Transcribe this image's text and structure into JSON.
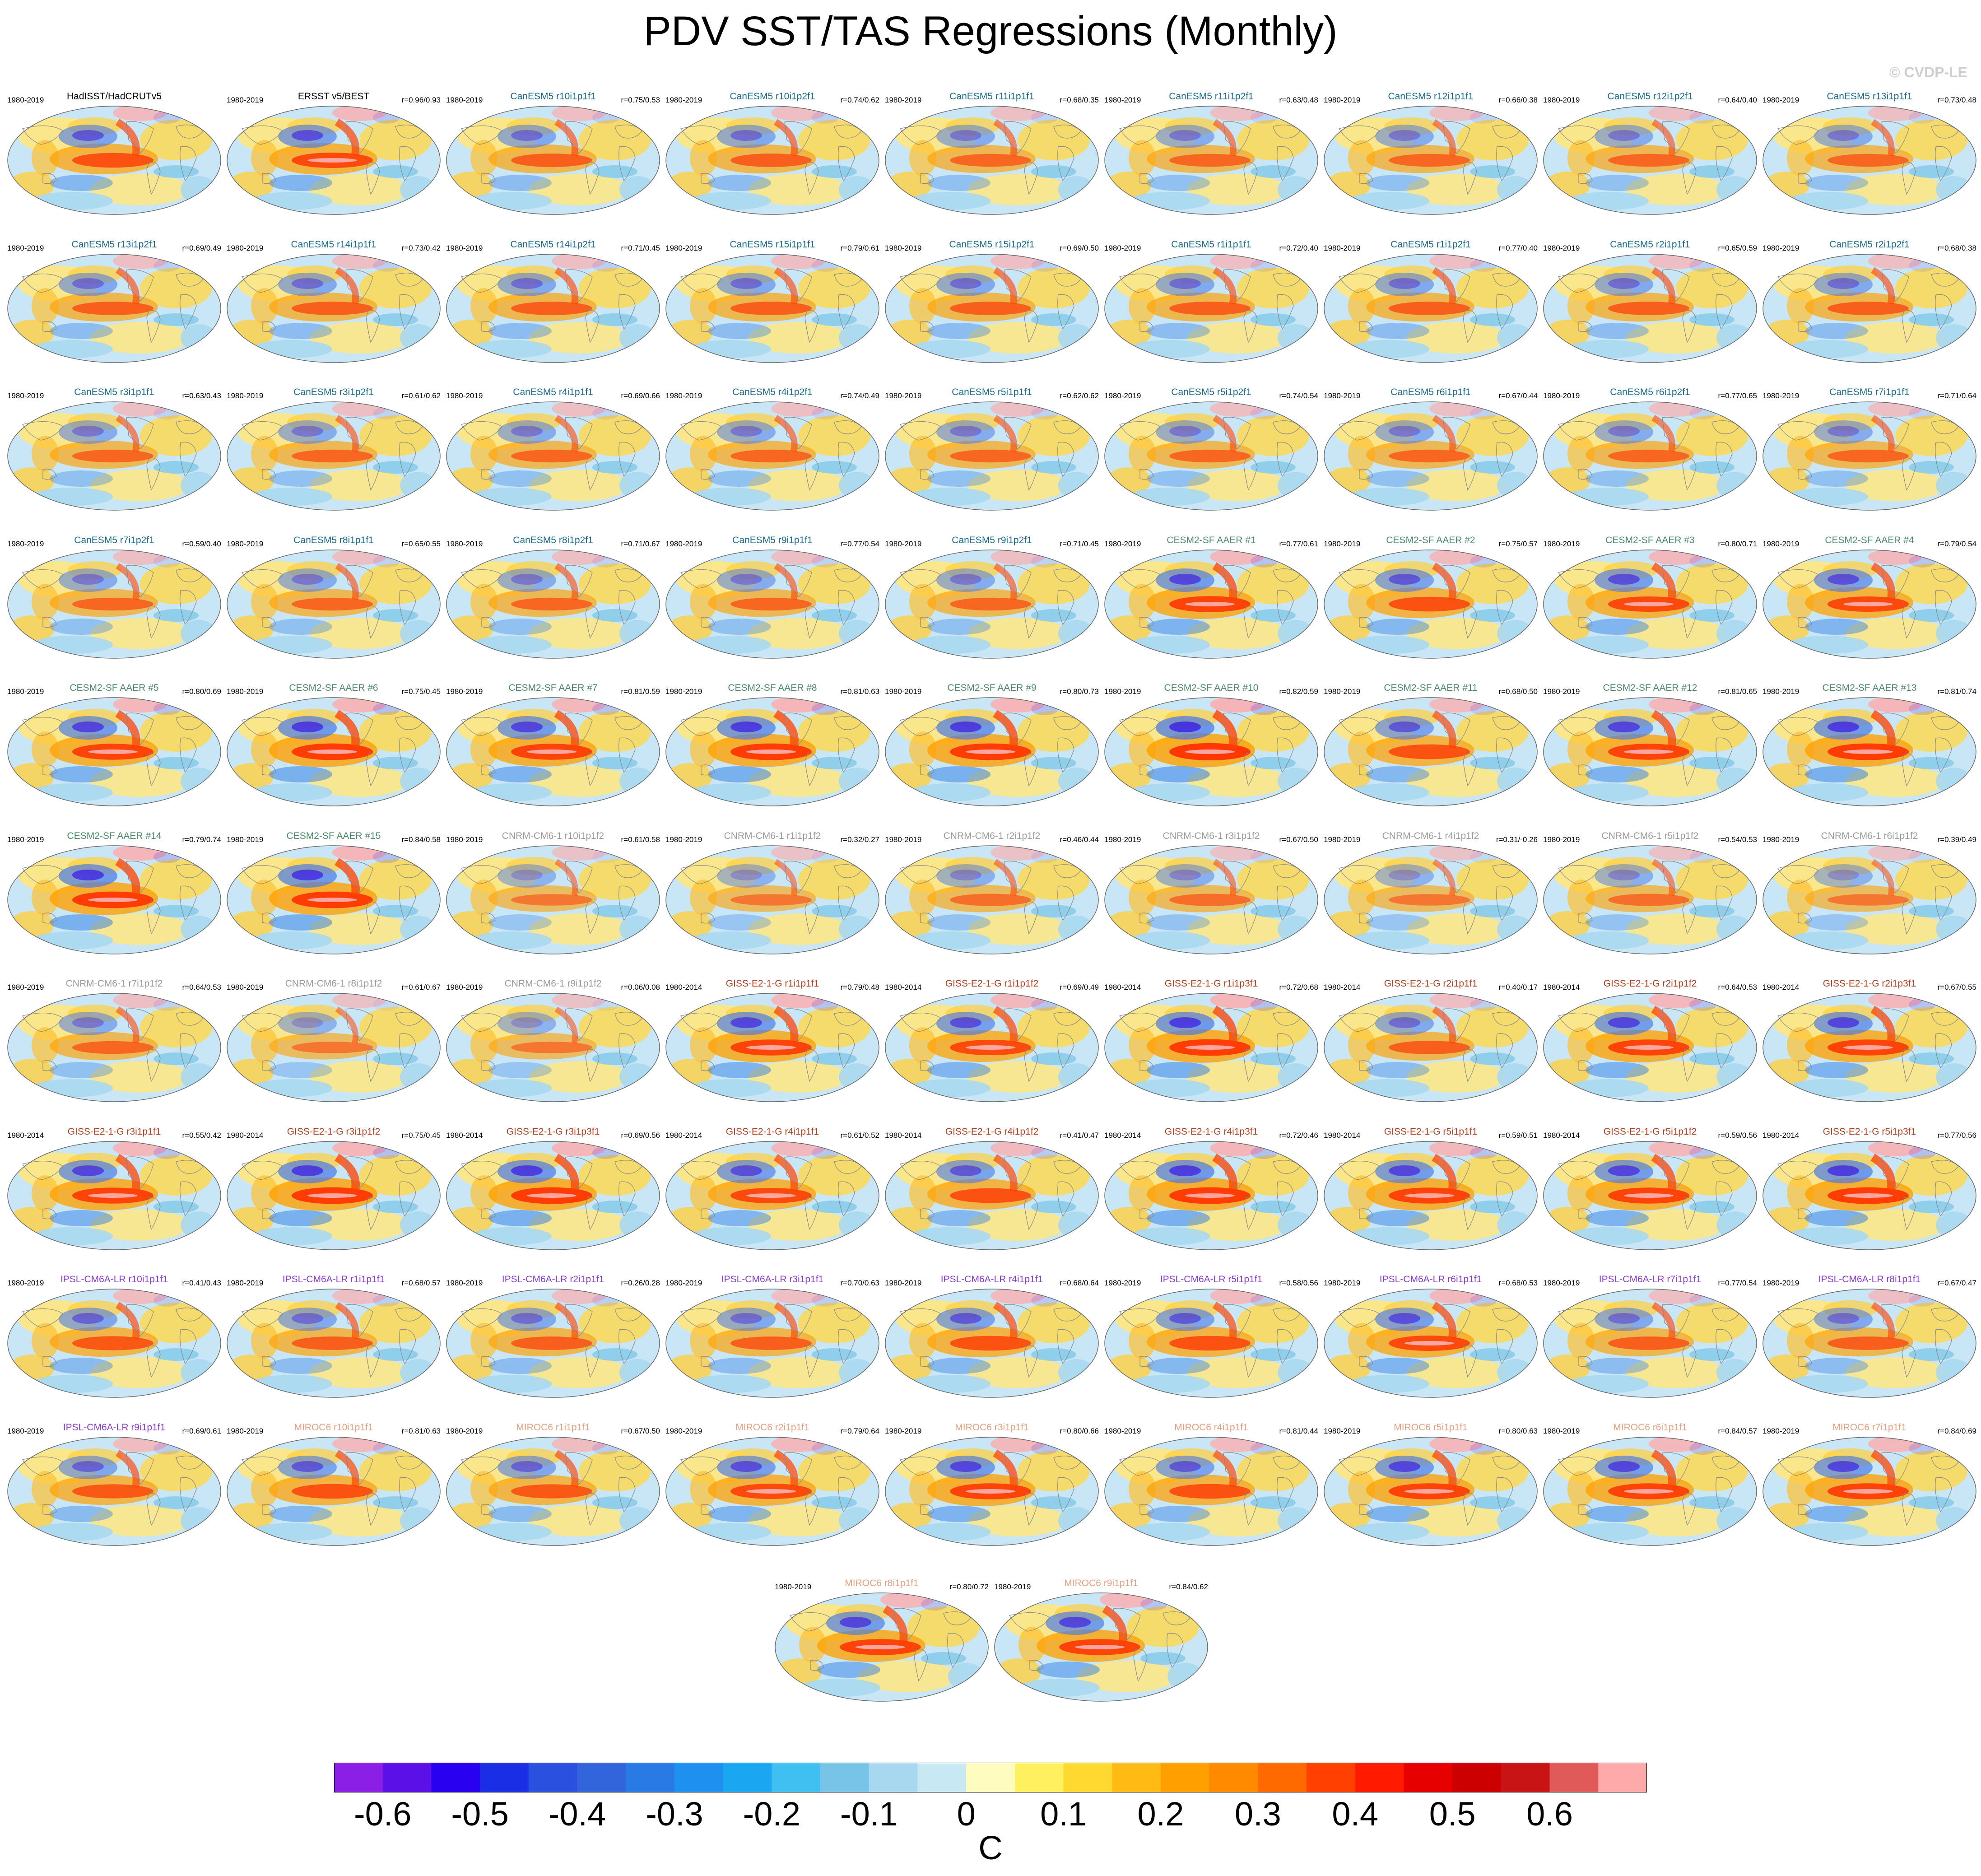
{
  "title": "PDV SST/TAS Regressions (Monthly)",
  "watermark": "© CVDP-LE",
  "units": "C",
  "colorbar": {
    "colors": [
      "#8c1fe6",
      "#5a10e6",
      "#2a00f0",
      "#1a2ee6",
      "#2a50e0",
      "#3264dc",
      "#2a7ae6",
      "#1e90f0",
      "#1aa6f0",
      "#40c0f0",
      "#78c4e8",
      "#a8d8f0",
      "#c8e8f4",
      "#fffcc0",
      "#fff060",
      "#ffd830",
      "#ffbb14",
      "#ffa000",
      "#ff8a00",
      "#ff6a00",
      "#ff4000",
      "#ff1a00",
      "#e60000",
      "#cc0000",
      "#c81414",
      "#e05a5a",
      "#ffaaaa"
    ],
    "tick_labels": [
      "-0.6",
      "-0.5",
      "-0.4",
      "-0.3",
      "-0.2",
      "-0.1",
      "0",
      "0.1",
      "0.2",
      "0.3",
      "0.4",
      "0.5",
      "0.6"
    ]
  },
  "model_colors": {
    "obs": "#000000",
    "CanESM5": "#1a6a8a",
    "CESM2-SF AAER": "#4a8a6a",
    "CNRM-CM6-1": "#9a9a9a",
    "GISS-E2-1-G": "#b04020",
    "IPSL-CM6A-LR": "#8a3ad0",
    "MIROC6": "#e6a080"
  },
  "panels": [
    {
      "title": "HadISST/HadCRUTv5",
      "period": "1980-2019",
      "corr": "",
      "model": "obs",
      "amp": 0.45
    },
    {
      "title": "ERSST v5/BEST",
      "period": "1980-2019",
      "corr": "r=0.96/0.93",
      "model": "obs",
      "amp": 0.5
    },
    {
      "title": "CanESM5 r10i1p1f1",
      "period": "1980-2019",
      "corr": "r=0.75/0.53",
      "model": "CanESM5",
      "amp": 0.35
    },
    {
      "title": "CanESM5 r10i1p2f1",
      "period": "1980-2019",
      "corr": "r=0.74/0.62",
      "model": "CanESM5",
      "amp": 0.35
    },
    {
      "title": "CanESM5 r11i1p1f1",
      "period": "1980-2019",
      "corr": "r=0.68/0.35",
      "model": "CanESM5",
      "amp": 0.3
    },
    {
      "title": "CanESM5 r11i1p2f1",
      "period": "1980-2019",
      "corr": "r=0.63/0.48",
      "model": "CanESM5",
      "amp": 0.3
    },
    {
      "title": "CanESM5 r12i1p1f1",
      "period": "1980-2019",
      "corr": "r=0.66/0.38",
      "model": "CanESM5",
      "amp": 0.3
    },
    {
      "title": "CanESM5 r12i1p2f1",
      "period": "1980-2019",
      "corr": "r=0.64/0.40",
      "model": "CanESM5",
      "amp": 0.3
    },
    {
      "title": "CanESM5 r13i1p1f1",
      "period": "1980-2019",
      "corr": "r=0.73/0.48",
      "model": "CanESM5",
      "amp": 0.3
    },
    {
      "title": "CanESM5 r13i1p2f1",
      "period": "1980-2019",
      "corr": "r=0.69/0.49",
      "model": "CanESM5",
      "amp": 0.35
    },
    {
      "title": "CanESM5 r14i1p1f1",
      "period": "1980-2019",
      "corr": "r=0.73/0.42",
      "model": "CanESM5",
      "amp": 0.35
    },
    {
      "title": "CanESM5 r14i1p2f1",
      "period": "1980-2019",
      "corr": "r=0.71/0.45",
      "model": "CanESM5",
      "amp": 0.35
    },
    {
      "title": "CanESM5 r15i1p1f1",
      "period": "1980-2019",
      "corr": "r=0.79/0.61",
      "model": "CanESM5",
      "amp": 0.35
    },
    {
      "title": "CanESM5 r15i1p2f1",
      "period": "1980-2019",
      "corr": "r=0.69/0.50",
      "model": "CanESM5",
      "amp": 0.35
    },
    {
      "title": "CanESM5 r1i1p1f1",
      "period": "1980-2019",
      "corr": "r=0.72/0.40",
      "model": "CanESM5",
      "amp": 0.35
    },
    {
      "title": "CanESM5 r1i1p2f1",
      "period": "1980-2019",
      "corr": "r=0.77/0.40",
      "model": "CanESM5",
      "amp": 0.35
    },
    {
      "title": "CanESM5 r2i1p1f1",
      "period": "1980-2019",
      "corr": "r=0.65/0.59",
      "model": "CanESM5",
      "amp": 0.35
    },
    {
      "title": "CanESM5 r2i1p2f1",
      "period": "1980-2019",
      "corr": "r=0.68/0.38",
      "model": "CanESM5",
      "amp": 0.35
    },
    {
      "title": "CanESM5 r3i1p1f1",
      "period": "1980-2019",
      "corr": "r=0.63/0.43",
      "model": "CanESM5",
      "amp": 0.3
    },
    {
      "title": "CanESM5 r3i1p2f1",
      "period": "1980-2019",
      "corr": "r=0.61/0.62",
      "model": "CanESM5",
      "amp": 0.3
    },
    {
      "title": "CanESM5 r4i1p1f1",
      "period": "1980-2019",
      "corr": "r=0.69/0.66",
      "model": "CanESM5",
      "amp": 0.3
    },
    {
      "title": "CanESM5 r4i1p2f1",
      "period": "1980-2019",
      "corr": "r=0.74/0.49",
      "model": "CanESM5",
      "amp": 0.3
    },
    {
      "title": "CanESM5 r5i1p1f1",
      "period": "1980-2019",
      "corr": "r=0.62/0.62",
      "model": "CanESM5",
      "amp": 0.3
    },
    {
      "title": "CanESM5 r5i1p2f1",
      "period": "1980-2019",
      "corr": "r=0.74/0.54",
      "model": "CanESM5",
      "amp": 0.3
    },
    {
      "title": "CanESM5 r6i1p1f1",
      "period": "1980-2019",
      "corr": "r=0.67/0.44",
      "model": "CanESM5",
      "amp": 0.3
    },
    {
      "title": "CanESM5 r6i1p2f1",
      "period": "1980-2019",
      "corr": "r=0.77/0.65",
      "model": "CanESM5",
      "amp": 0.3
    },
    {
      "title": "CanESM5 r7i1p1f1",
      "period": "1980-2019",
      "corr": "r=0.71/0.64",
      "model": "CanESM5",
      "amp": 0.3
    },
    {
      "title": "CanESM5 r7i1p2f1",
      "period": "1980-2019",
      "corr": "r=0.59/0.40",
      "model": "CanESM5",
      "amp": 0.3
    },
    {
      "title": "CanESM5 r8i1p1f1",
      "period": "1980-2019",
      "corr": "r=0.65/0.55",
      "model": "CanESM5",
      "amp": 0.3
    },
    {
      "title": "CanESM5 r8i1p2f1",
      "period": "1980-2019",
      "corr": "r=0.71/0.67",
      "model": "CanESM5",
      "amp": 0.3
    },
    {
      "title": "CanESM5 r9i1p1f1",
      "period": "1980-2019",
      "corr": "r=0.77/0.54",
      "model": "CanESM5",
      "amp": 0.3
    },
    {
      "title": "CanESM5 r9i1p2f1",
      "period": "1980-2019",
      "corr": "r=0.71/0.45",
      "model": "CanESM5",
      "amp": 0.3
    },
    {
      "title": "CESM2-SF AAER #1",
      "period": "1980-2019",
      "corr": "r=0.77/0.61",
      "model": "CESM2-SF AAER",
      "amp": 0.55
    },
    {
      "title": "CESM2-SF AAER #2",
      "period": "1980-2019",
      "corr": "r=0.75/0.57",
      "model": "CESM2-SF AAER",
      "amp": 0.45
    },
    {
      "title": "CESM2-SF AAER #3",
      "period": "1980-2019",
      "corr": "r=0.80/0.71",
      "model": "CESM2-SF AAER",
      "amp": 0.5
    },
    {
      "title": "CESM2-SF AAER #4",
      "period": "1980-2019",
      "corr": "r=0.79/0.54",
      "model": "CESM2-SF AAER",
      "amp": 0.5
    },
    {
      "title": "CESM2-SF AAER #5",
      "period": "1980-2019",
      "corr": "r=0.80/0.69",
      "model": "CESM2-SF AAER",
      "amp": 0.55
    },
    {
      "title": "CESM2-SF AAER #6",
      "period": "1980-2019",
      "corr": "r=0.75/0.45",
      "model": "CESM2-SF AAER",
      "amp": 0.6
    },
    {
      "title": "CESM2-SF AAER #7",
      "period": "1980-2019",
      "corr": "r=0.81/0.59",
      "model": "CESM2-SF AAER",
      "amp": 0.55
    },
    {
      "title": "CESM2-SF AAER #8",
      "period": "1980-2019",
      "corr": "r=0.81/0.63",
      "model": "CESM2-SF AAER",
      "amp": 0.6
    },
    {
      "title": "CESM2-SF AAER #9",
      "period": "1980-2019",
      "corr": "r=0.80/0.73",
      "model": "CESM2-SF AAER",
      "amp": 0.6
    },
    {
      "title": "CESM2-SF AAER #10",
      "period": "1980-2019",
      "corr": "r=0.82/0.59",
      "model": "CESM2-SF AAER",
      "amp": 0.65
    },
    {
      "title": "CESM2-SF AAER #11",
      "period": "1980-2019",
      "corr": "r=0.68/0.50",
      "model": "CESM2-SF AAER",
      "amp": 0.45
    },
    {
      "title": "CESM2-SF AAER #12",
      "period": "1980-2019",
      "corr": "r=0.81/0.65",
      "model": "CESM2-SF AAER",
      "amp": 0.55
    },
    {
      "title": "CESM2-SF AAER #13",
      "period": "1980-2019",
      "corr": "r=0.81/0.74",
      "model": "CESM2-SF AAER",
      "amp": 0.6
    },
    {
      "title": "CESM2-SF AAER #14",
      "period": "1980-2019",
      "corr": "r=0.79/0.74",
      "model": "CESM2-SF AAER",
      "amp": 0.6
    },
    {
      "title": "CESM2-SF AAER #15",
      "period": "1980-2019",
      "corr": "r=0.84/0.58",
      "model": "CESM2-SF AAER",
      "amp": 0.6
    },
    {
      "title": "CNRM-CM6-1 r10i1p1f2",
      "period": "1980-2019",
      "corr": "r=0.61/0.58",
      "model": "CNRM-CM6-1",
      "amp": 0.2
    },
    {
      "title": "CNRM-CM6-1 r1i1p1f2",
      "period": "1980-2019",
      "corr": "r=0.32/0.27",
      "model": "CNRM-CM6-1",
      "amp": 0.2
    },
    {
      "title": "CNRM-CM6-1 r2i1p1f2",
      "period": "1980-2019",
      "corr": "r=0.46/0.44",
      "model": "CNRM-CM6-1",
      "amp": 0.25
    },
    {
      "title": "CNRM-CM6-1 r3i1p1f2",
      "period": "1980-2019",
      "corr": "r=0.67/0.50",
      "model": "CNRM-CM6-1",
      "amp": 0.25
    },
    {
      "title": "CNRM-CM6-1 r4i1p1f2",
      "period": "1980-2019",
      "corr": "r=0.31/-0.26",
      "model": "CNRM-CM6-1",
      "amp": 0.2
    },
    {
      "title": "CNRM-CM6-1 r5i1p1f2",
      "period": "1980-2019",
      "corr": "r=0.54/0.53",
      "model": "CNRM-CM6-1",
      "amp": 0.25
    },
    {
      "title": "CNRM-CM6-1 r6i1p1f2",
      "period": "1980-2019",
      "corr": "r=0.39/0.49",
      "model": "CNRM-CM6-1",
      "amp": 0.2
    },
    {
      "title": "CNRM-CM6-1 r7i1p1f2",
      "period": "1980-2019",
      "corr": "r=0.64/0.53",
      "model": "CNRM-CM6-1",
      "amp": 0.3
    },
    {
      "title": "CNRM-CM6-1 r8i1p1f2",
      "period": "1980-2019",
      "corr": "r=0.61/0.67",
      "model": "CNRM-CM6-1",
      "amp": 0.2
    },
    {
      "title": "CNRM-CM6-1 r9i1p1f2",
      "period": "1980-2019",
      "corr": "r=0.06/0.08",
      "model": "CNRM-CM6-1",
      "amp": 0.2
    },
    {
      "title": "GISS-E2-1-G r1i1p1f1",
      "period": "1980-2014",
      "corr": "r=0.79/0.48",
      "model": "GISS-E2-1-G",
      "amp": 0.55
    },
    {
      "title": "GISS-E2-1-G r1i1p1f2",
      "period": "1980-2014",
      "corr": "r=0.69/0.49",
      "model": "GISS-E2-1-G",
      "amp": 0.5
    },
    {
      "title": "GISS-E2-1-G r1i1p3f1",
      "period": "1980-2014",
      "corr": "r=0.72/0.68",
      "model": "GISS-E2-1-G",
      "amp": 0.6
    },
    {
      "title": "GISS-E2-1-G r2i1p1f1",
      "period": "1980-2014",
      "corr": "r=0.40/0.17",
      "model": "GISS-E2-1-G",
      "amp": 0.35
    },
    {
      "title": "GISS-E2-1-G r2i1p1f2",
      "period": "1980-2014",
      "corr": "r=0.64/0.53",
      "model": "GISS-E2-1-G",
      "amp": 0.55
    },
    {
      "title": "GISS-E2-1-G r2i1p3f1",
      "period": "1980-2014",
      "corr": "r=0.67/0.55",
      "model": "GISS-E2-1-G",
      "amp": 0.55
    },
    {
      "title": "GISS-E2-1-G r3i1p1f1",
      "period": "1980-2014",
      "corr": "r=0.55/0.42",
      "model": "GISS-E2-1-G",
      "amp": 0.55
    },
    {
      "title": "GISS-E2-1-G r3i1p1f2",
      "period": "1980-2014",
      "corr": "r=0.75/0.45",
      "model": "GISS-E2-1-G",
      "amp": 0.6
    },
    {
      "title": "GISS-E2-1-G r3i1p3f1",
      "period": "1980-2014",
      "corr": "r=0.69/0.56",
      "model": "GISS-E2-1-G",
      "amp": 0.6
    },
    {
      "title": "GISS-E2-1-G r4i1p1f1",
      "period": "1980-2014",
      "corr": "r=0.61/0.52",
      "model": "GISS-E2-1-G",
      "amp": 0.5
    },
    {
      "title": "GISS-E2-1-G r4i1p1f2",
      "period": "1980-2014",
      "corr": "r=0.41/0.47",
      "model": "GISS-E2-1-G",
      "amp": 0.45
    },
    {
      "title": "GISS-E2-1-G r4i1p3f1",
      "period": "1980-2014",
      "corr": "r=0.72/0.46",
      "model": "GISS-E2-1-G",
      "amp": 0.6
    },
    {
      "title": "GISS-E2-1-G r5i1p1f1",
      "period": "1980-2014",
      "corr": "r=0.59/0.51",
      "model": "GISS-E2-1-G",
      "amp": 0.55
    },
    {
      "title": "GISS-E2-1-G r5i1p1f2",
      "period": "1980-2014",
      "corr": "r=0.59/0.56",
      "model": "GISS-E2-1-G",
      "amp": 0.55
    },
    {
      "title": "GISS-E2-1-G r5i1p3f1",
      "period": "1980-2014",
      "corr": "r=0.77/0.56",
      "model": "GISS-E2-1-G",
      "amp": 0.6
    },
    {
      "title": "IPSL-CM6A-LR r10i1p1f1",
      "period": "1980-2019",
      "corr": "r=0.41/0.43",
      "model": "IPSL-CM6A-LR",
      "amp": 0.4
    },
    {
      "title": "IPSL-CM6A-LR r1i1p1f1",
      "period": "1980-2019",
      "corr": "r=0.68/0.57",
      "model": "IPSL-CM6A-LR",
      "amp": 0.35
    },
    {
      "title": "IPSL-CM6A-LR r2i1p1f1",
      "period": "1980-2019",
      "corr": "r=0.26/0.28",
      "model": "IPSL-CM6A-LR",
      "amp": 0.35
    },
    {
      "title": "IPSL-CM6A-LR r3i1p1f1",
      "period": "1980-2019",
      "corr": "r=0.70/0.63",
      "model": "IPSL-CM6A-LR",
      "amp": 0.35
    },
    {
      "title": "IPSL-CM6A-LR r4i1p1f1",
      "period": "1980-2019",
      "corr": "r=0.68/0.64",
      "model": "IPSL-CM6A-LR",
      "amp": 0.45
    },
    {
      "title": "IPSL-CM6A-LR r5i1p1f1",
      "period": "1980-2019",
      "corr": "r=0.58/0.56",
      "model": "IPSL-CM6A-LR",
      "amp": 0.45
    },
    {
      "title": "IPSL-CM6A-LR r6i1p1f1",
      "period": "1980-2019",
      "corr": "r=0.68/0.53",
      "model": "IPSL-CM6A-LR",
      "amp": 0.5
    },
    {
      "title": "IPSL-CM6A-LR r7i1p1f1",
      "period": "1980-2019",
      "corr": "r=0.77/0.54",
      "model": "IPSL-CM6A-LR",
      "amp": 0.35
    },
    {
      "title": "IPSL-CM6A-LR r8i1p1f1",
      "period": "1980-2019",
      "corr": "r=0.67/0.47",
      "model": "IPSL-CM6A-LR",
      "amp": 0.35
    },
    {
      "title": "IPSL-CM6A-LR r9i1p1f1",
      "period": "1980-2019",
      "corr": "r=0.69/0.61",
      "model": "IPSL-CM6A-LR",
      "amp": 0.4
    },
    {
      "title": "MIROC6 r10i1p1f1",
      "period": "1980-2019",
      "corr": "r=0.81/0.63",
      "model": "MIROC6",
      "amp": 0.45
    },
    {
      "title": "MIROC6 r1i1p1f1",
      "period": "1980-2019",
      "corr": "r=0.67/0.50",
      "model": "MIROC6",
      "amp": 0.4
    },
    {
      "title": "MIROC6 r2i1p1f1",
      "period": "1980-2019",
      "corr": "r=0.79/0.64",
      "model": "MIROC6",
      "amp": 0.5
    },
    {
      "title": "MIROC6 r3i1p1f1",
      "period": "1980-2019",
      "corr": "r=0.80/0.66",
      "model": "MIROC6",
      "amp": 0.55
    },
    {
      "title": "MIROC6 r4i1p1f1",
      "period": "1980-2019",
      "corr": "r=0.81/0.44",
      "model": "MIROC6",
      "amp": 0.45
    },
    {
      "title": "MIROC6 r5i1p1f1",
      "period": "1980-2019",
      "corr": "r=0.80/0.63",
      "model": "MIROC6",
      "amp": 0.55
    },
    {
      "title": "MIROC6 r6i1p1f1",
      "period": "1980-2019",
      "corr": "r=0.84/0.57",
      "model": "MIROC6",
      "amp": 0.55
    },
    {
      "title": "MIROC6 r7i1p1f1",
      "period": "1980-2019",
      "corr": "r=0.84/0.69",
      "model": "MIROC6",
      "amp": 0.55
    },
    {
      "title": "MIROC6 r8i1p1f1",
      "period": "1980-2019",
      "corr": "r=0.80/0.72",
      "model": "MIROC6",
      "amp": 0.55
    },
    {
      "title": "MIROC6 r9i1p1f1",
      "period": "1980-2019",
      "corr": "r=0.84/0.62",
      "model": "MIROC6",
      "amp": 0.55
    }
  ]
}
